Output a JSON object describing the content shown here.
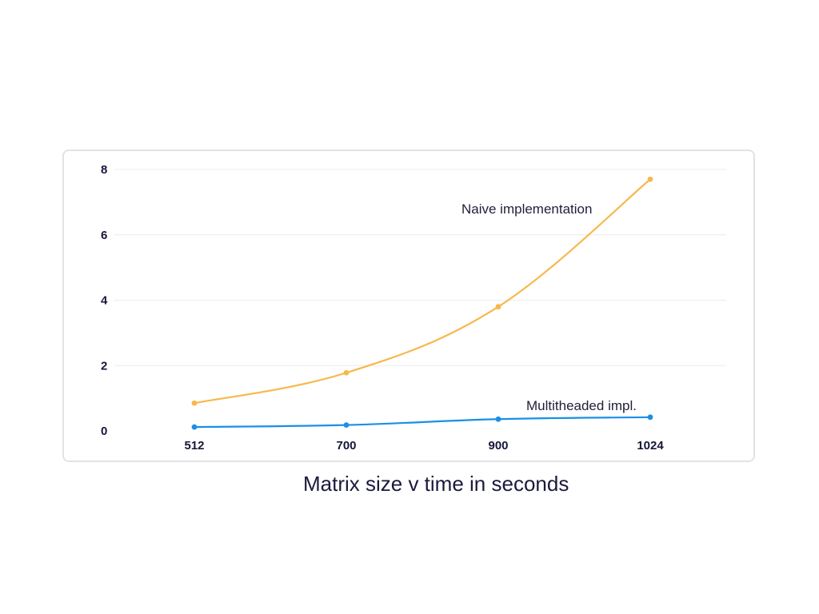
{
  "chart_data": {
    "type": "line",
    "title": "Matrix size v time in seconds",
    "categories": [
      "512",
      "700",
      "900",
      "1024"
    ],
    "ylim": [
      0,
      8
    ],
    "yticks": [
      "0",
      "2",
      "4",
      "6",
      "8"
    ],
    "grid": true,
    "series": [
      {
        "name": "Naive implementation",
        "values": [
          0.85,
          1.78,
          3.8,
          7.7
        ],
        "color": "#f7b84b"
      },
      {
        "name": "Multitheaded impl.",
        "values": [
          0.12,
          0.18,
          0.36,
          0.42
        ],
        "color": "#1a8fe8"
      }
    ]
  }
}
